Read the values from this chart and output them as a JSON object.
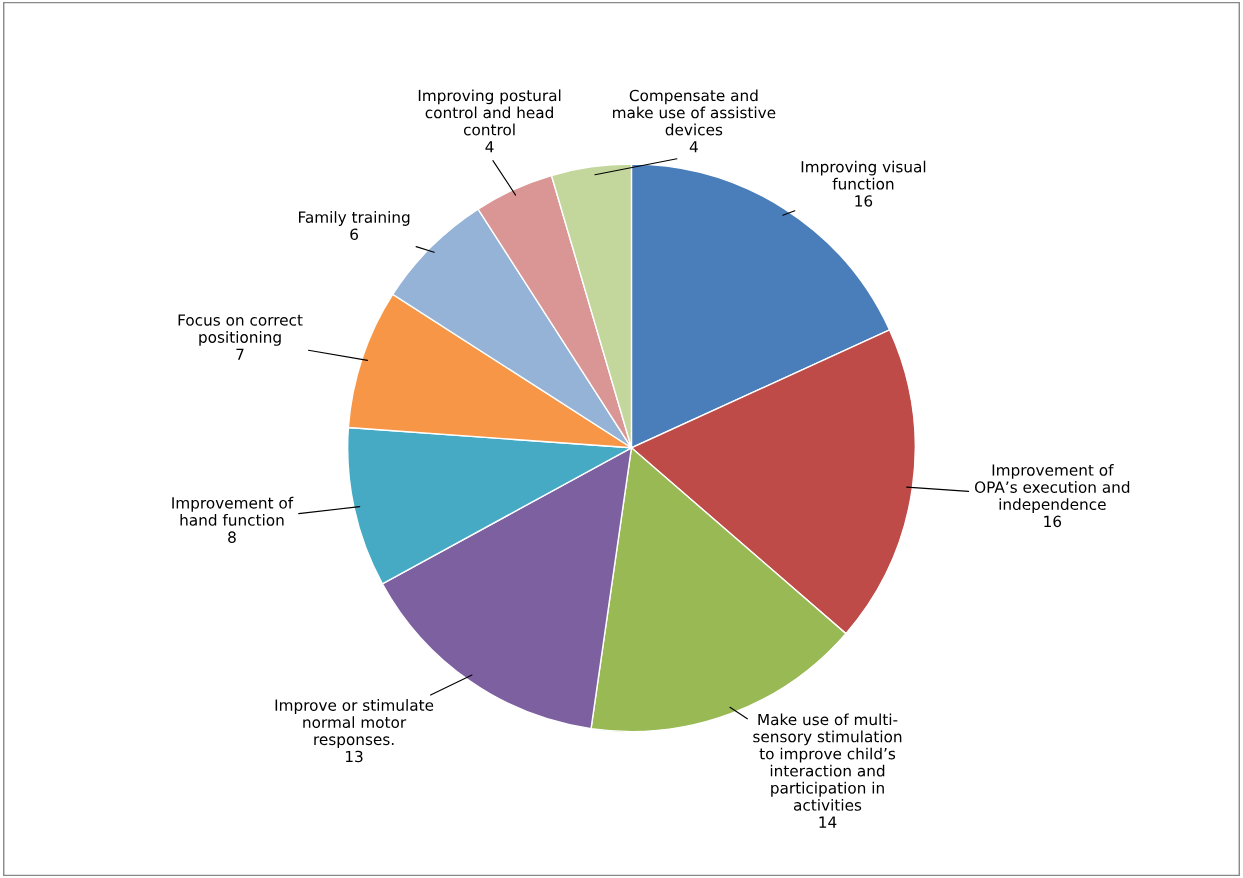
{
  "chart_data": {
    "type": "pie",
    "categories": [
      "Improving visual\nfunction",
      "Improvement of\nOPA’s execution and\nindependence",
      "Make use of multi-\nsensory stimulation\nto improve child’s\ninteraction and\nparticipation in\nactivities",
      "Improve or stimulate\nnormal motor\nresponses.",
      "Improvement of\nhand function",
      "Focus on correct\npositioning",
      "Family training",
      "Improving postural\ncontrol and head\ncontrol",
      "Compensate and\nmake use of assistive\ndevices"
    ],
    "values": [
      16,
      16,
      14,
      13,
      8,
      7,
      6,
      4,
      4
    ],
    "colors": [
      "#4a7ebb",
      "#be4b48",
      "#98b954",
      "#7d60a0",
      "#46aac5",
      "#f79646",
      "#95b3d7",
      "#d99694",
      "#c3d69b"
    ],
    "data_labels": true,
    "legend": false
  }
}
